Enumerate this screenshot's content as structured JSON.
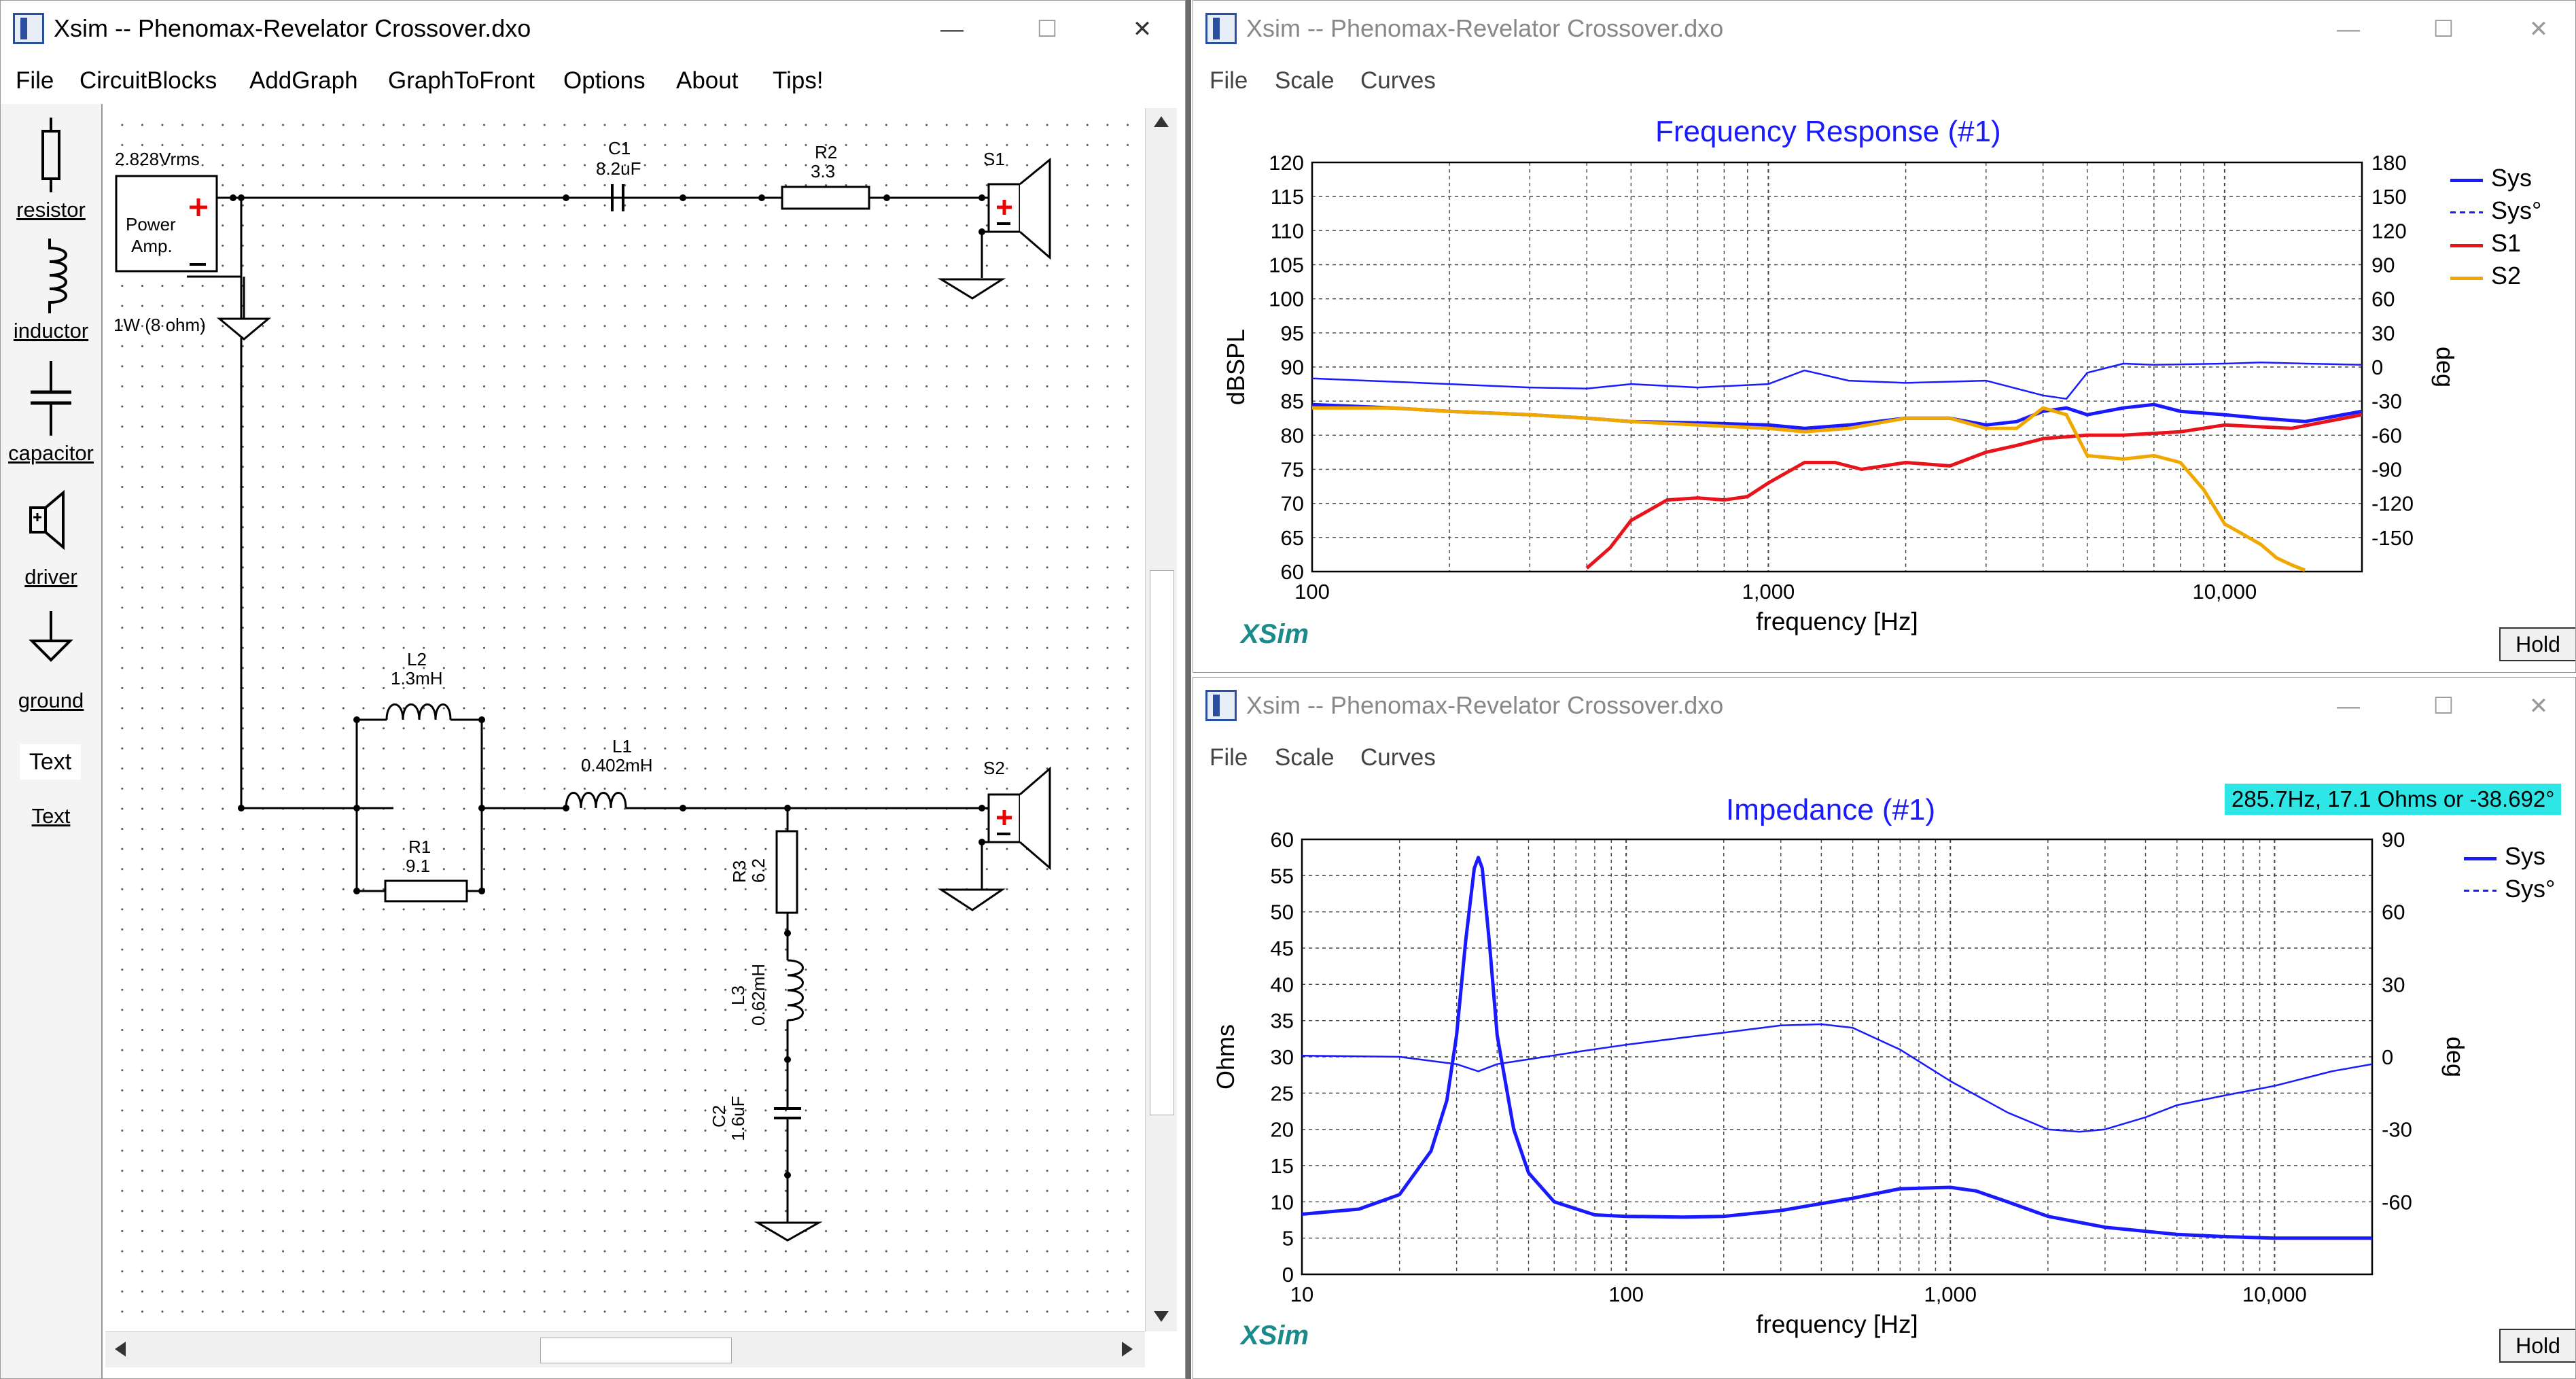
{
  "left_window": {
    "title": "Xsim -- Phenomax-Revelator Crossover.dxo",
    "menu": [
      "File",
      "CircuitBlocks",
      "AddGraph",
      "GraphToFront",
      "Options",
      "About",
      "Tips!"
    ],
    "palette": [
      "resistor",
      "inductor",
      "capacitor",
      "driver",
      "ground",
      "Text",
      "Text"
    ],
    "palette_text_box": "Text",
    "circuit": {
      "amp_voltage": "2.828Vrms",
      "amp_label_1": "Power",
      "amp_label_2": "Amp.",
      "amp_rating": "1W (8 ohm)",
      "c1_name": "C1",
      "c1_value": "8.2uF",
      "r2_name": "R2",
      "r2_value": "3.3",
      "s1_name": "S1",
      "l2_name": "L2",
      "l2_value": "1.3mH",
      "r1_name": "R1",
      "r1_value": "9.1",
      "l1_name": "L1",
      "l1_value": "0.402mH",
      "s2_name": "S2",
      "r3_name": "R3",
      "r3_value": "6.2",
      "l3_name": "L3",
      "l3_value": "0.62mH",
      "c2_name": "C2",
      "c2_value": "1.6uF"
    }
  },
  "fr_window": {
    "title": "Xsim -- Phenomax-Revelator Crossover.dxo",
    "menu": [
      "File",
      "Scale",
      "Curves"
    ],
    "hold": "Hold",
    "brand": "XSim"
  },
  "imp_window": {
    "title": "Xsim -- Phenomax-Revelator Crossover.dxo",
    "menu": [
      "File",
      "Scale",
      "Curves"
    ],
    "hold": "Hold",
    "brand": "XSim",
    "readout": "285.7Hz, 17.1 Ohms or -38.692°"
  },
  "colors": {
    "sys": "#1a1aff",
    "s1": "#e8141c",
    "s2": "#f0a800",
    "readout_bg": "#2ee6e6",
    "brand": "#1b8a8a"
  },
  "chart_data": [
    {
      "type": "line",
      "title": "Frequency Response (#1)",
      "xlabel": "frequency [Hz]",
      "ylabel": "dBSPL",
      "y2label": "deg",
      "xscale": "log",
      "xlim": [
        100,
        20000
      ],
      "ylim": [
        60,
        120
      ],
      "y2lim": [
        -180,
        180
      ],
      "x_tick_labels": [
        "100",
        "1,000",
        "10,000"
      ],
      "y_ticks": [
        120,
        115,
        110,
        105,
        100,
        95,
        90,
        85,
        80,
        75,
        70,
        65,
        60
      ],
      "y2_ticks": [
        180,
        150,
        120,
        90,
        60,
        30,
        0,
        -30,
        -60,
        -90,
        -120,
        -150
      ],
      "legend": [
        "Sys",
        "Sys°",
        "S1",
        "S2"
      ],
      "legend_position": "right",
      "grid": true,
      "series": [
        {
          "name": "Sys",
          "axis": "left",
          "style": "solid",
          "x": [
            100,
            150,
            200,
            300,
            400,
            500,
            700,
            1000,
            1200,
            1500,
            2000,
            2500,
            3000,
            3500,
            4000,
            4500,
            5000,
            6000,
            7000,
            8000,
            10000,
            12000,
            15000,
            20000
          ],
          "y": [
            84.5,
            84,
            83.5,
            83,
            82.5,
            82,
            81.8,
            81.5,
            81,
            81.5,
            82.5,
            82.5,
            81.5,
            82,
            83.5,
            84,
            83,
            84,
            84.5,
            83.5,
            83,
            82.5,
            82,
            83.5
          ]
        },
        {
          "name": "Sys°",
          "axis": "right",
          "style": "dashed",
          "x": [
            100,
            200,
            300,
            400,
            500,
            700,
            1000,
            1200,
            1500,
            2000,
            3000,
            4000,
            4500,
            5000,
            6000,
            7000,
            10000,
            12000,
            15000,
            20000
          ],
          "y": [
            -10,
            -15,
            -18,
            -19,
            -15,
            -18,
            -15,
            -3,
            -12,
            -14,
            -12,
            -25,
            -28,
            -5,
            3,
            2,
            3,
            4,
            3,
            2
          ]
        },
        {
          "name": "S1",
          "axis": "left",
          "style": "solid",
          "x": [
            400,
            450,
            500,
            600,
            700,
            800,
            900,
            1000,
            1200,
            1400,
            1600,
            2000,
            2500,
            3000,
            3500,
            4000,
            5000,
            6000,
            8000,
            10000,
            14000,
            20000
          ],
          "y": [
            60.5,
            63.5,
            67.5,
            70.5,
            70.8,
            70.5,
            71,
            73,
            76,
            76,
            75,
            76,
            75.5,
            77.5,
            78.5,
            79.5,
            80,
            80,
            80.5,
            81.5,
            81,
            83
          ]
        },
        {
          "name": "S2",
          "axis": "left",
          "style": "solid",
          "x": [
            100,
            150,
            200,
            300,
            400,
            500,
            700,
            1000,
            1200,
            1500,
            2000,
            2500,
            3000,
            3500,
            4000,
            4500,
            5000,
            6000,
            7000,
            8000,
            9000,
            10000,
            12000,
            13000,
            14000,
            15000
          ],
          "y": [
            84,
            84,
            83.5,
            83,
            82.5,
            82,
            81.5,
            81,
            80.5,
            81,
            82.5,
            82.5,
            81,
            81,
            84,
            83,
            77,
            76.5,
            77,
            76,
            72,
            67,
            64,
            62,
            61,
            60.2
          ]
        }
      ]
    },
    {
      "type": "line",
      "title": "Impedance (#1)",
      "xlabel": "frequency [Hz]",
      "ylabel": "Ohms",
      "y2label": "deg",
      "xscale": "log",
      "xlim": [
        10,
        20000
      ],
      "ylim": [
        0,
        60
      ],
      "y2lim": [
        -90,
        90
      ],
      "x_tick_labels": [
        "10",
        "100",
        "1,000",
        "10,000"
      ],
      "y_ticks": [
        60,
        55,
        50,
        45,
        40,
        35,
        30,
        25,
        20,
        15,
        10,
        5,
        0
      ],
      "y2_ticks": [
        90,
        60,
        30,
        0,
        -30,
        -60
      ],
      "legend": [
        "Sys",
        "Sys°"
      ],
      "legend_position": "right",
      "grid": true,
      "series": [
        {
          "name": "Sys",
          "axis": "left",
          "style": "solid",
          "x": [
            10,
            15,
            20,
            25,
            28,
            30,
            32,
            34,
            35,
            36,
            38,
            40,
            45,
            50,
            60,
            80,
            100,
            150,
            200,
            300,
            500,
            700,
            1000,
            1200,
            1500,
            2000,
            3000,
            5000,
            7000,
            10000,
            20000
          ],
          "y": [
            8.3,
            9,
            11,
            17,
            24,
            33,
            46,
            56,
            57.5,
            56,
            45,
            33,
            20,
            14,
            10,
            8.2,
            8,
            7.9,
            8,
            8.8,
            10.5,
            11.8,
            12,
            11.5,
            10,
            8,
            6.5,
            5.5,
            5.2,
            5,
            5
          ]
        },
        {
          "name": "Sys°",
          "axis": "right",
          "style": "dashed",
          "x": [
            10,
            20,
            30,
            35,
            40,
            50,
            70,
            100,
            150,
            200,
            300,
            400,
            500,
            700,
            1000,
            1500,
            2000,
            2500,
            3000,
            4000,
            5000,
            7000,
            10000,
            15000,
            20000
          ],
          "y": [
            0.5,
            0,
            -3,
            -6,
            -3,
            -1,
            2,
            5,
            8,
            10,
            13,
            13.5,
            12,
            3,
            -10,
            -23,
            -30,
            -31,
            -30,
            -25,
            -20,
            -16,
            -12,
            -6,
            -3
          ]
        }
      ]
    }
  ]
}
